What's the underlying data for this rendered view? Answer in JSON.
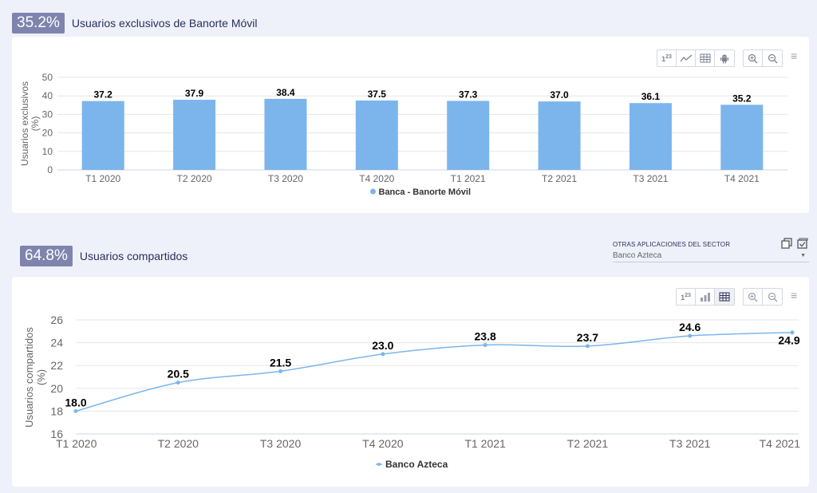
{
  "section1": {
    "badge": "35.2%",
    "title": "Usuarios exclusivos de Banorte Móvil"
  },
  "section2": {
    "badge": "64.8%",
    "title": "Usuarios compartidos",
    "dropdown_label": "OTRAS APLICACIONES DEL SECTOR",
    "dropdown_value": "Banco Azteca"
  },
  "toolbar_icons": {
    "chart1": [
      "numbers-icon",
      "line-chart-icon",
      "table-icon",
      "android-icon",
      "zoom-in-icon",
      "zoom-out-icon"
    ],
    "chart2": [
      "numbers-icon",
      "bar-chart-icon",
      "table-icon",
      "zoom-in-icon",
      "zoom-out-icon"
    ]
  },
  "colors": {
    "badge_bg": "#7e84ad",
    "bar": "#7cb5ec",
    "line": "#7cb5ec",
    "page_bg": "#eef1fa"
  },
  "chart_data": [
    {
      "type": "bar",
      "categories": [
        "T1 2020",
        "T2 2020",
        "T3 2020",
        "T4 2020",
        "T1 2021",
        "T2 2021",
        "T3 2021",
        "T4 2021"
      ],
      "series": [
        {
          "name": "Banca - Banorte Móvil",
          "values": [
            37.2,
            37.9,
            38.4,
            37.5,
            37.3,
            37.0,
            36.1,
            35.2
          ]
        }
      ],
      "data_labels": [
        "37.2",
        "37.9",
        "38.4",
        "37.5",
        "37.3",
        "37.0",
        "36.1",
        "35.2"
      ],
      "ylabel_line1": "Usuarios exclusivos",
      "ylabel_line2": "(%)",
      "ylim": [
        0,
        50
      ],
      "yticks": [
        0,
        10,
        20,
        30,
        40,
        50
      ],
      "grid": true,
      "legend": "bottom-center"
    },
    {
      "type": "line",
      "categories": [
        "T1 2020",
        "T2 2020",
        "T3 2020",
        "T4 2020",
        "T1 2021",
        "T2 2021",
        "T3 2021",
        "T4 2021"
      ],
      "series": [
        {
          "name": "Banco Azteca",
          "values": [
            18.0,
            20.5,
            21.5,
            23.0,
            23.8,
            23.7,
            24.6,
            24.9
          ]
        }
      ],
      "data_labels": [
        "18.0",
        "20.5",
        "21.5",
        "23.0",
        "23.8",
        "23.7",
        "24.6",
        "24.9"
      ],
      "ylabel_line1": "Usuarios compartidos",
      "ylabel_line2": "(%)",
      "ylim": [
        16,
        26
      ],
      "yticks": [
        16,
        18,
        20,
        22,
        24,
        26
      ],
      "grid": true,
      "legend": "bottom-center"
    }
  ]
}
